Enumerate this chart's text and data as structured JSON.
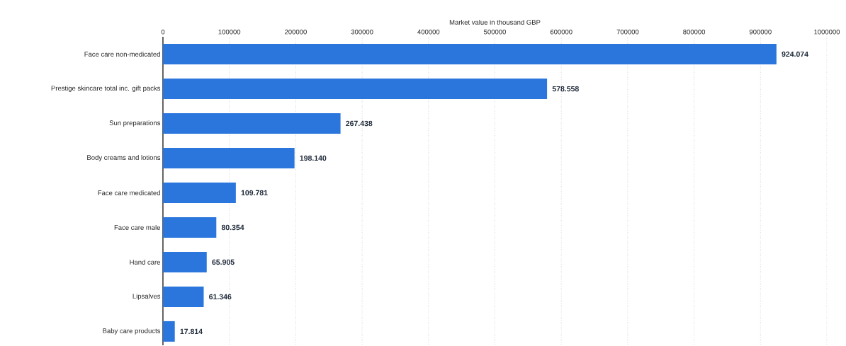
{
  "chart_data": {
    "type": "bar",
    "orientation": "horizontal",
    "xlabel": "Market value in thousand GBP",
    "categories": [
      "Face care non-medicated",
      "Prestige skincare total inc. gift packs",
      "Sun preparations",
      "Body creams and lotions",
      "Face care medicated",
      "Face care male",
      "Hand care",
      "Lipsalves",
      "Baby care products"
    ],
    "values": [
      924074,
      578558,
      267438,
      198140,
      109781,
      80354,
      65905,
      61346,
      17814
    ],
    "value_labels": [
      "924.074",
      "578.558",
      "267.438",
      "198.140",
      "109.781",
      "80.354",
      "65.905",
      "61.346",
      "17.814"
    ],
    "color": "#2a76dd",
    "xlim": [
      0,
      1000000
    ],
    "xticks": [
      0,
      100000,
      200000,
      300000,
      400000,
      500000,
      600000,
      700000,
      800000,
      900000,
      1000000
    ],
    "grid": "x"
  }
}
